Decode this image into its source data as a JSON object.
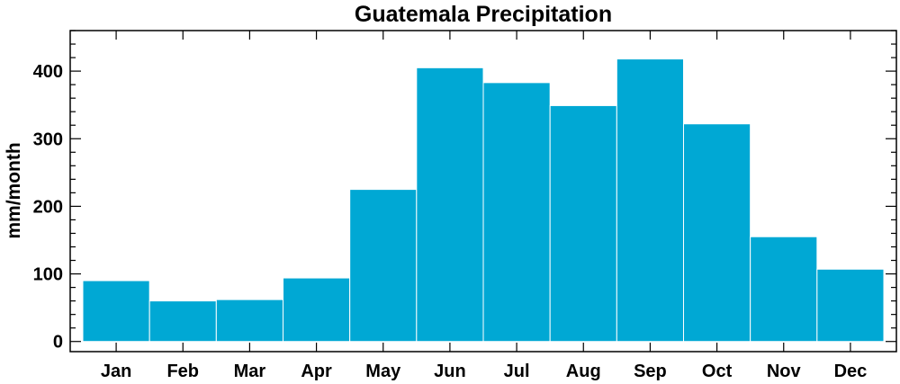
{
  "chart_data": {
    "type": "bar",
    "title": "Guatemala Precipitation",
    "xlabel": "",
    "ylabel": "mm/month",
    "categories": [
      "Jan",
      "Feb",
      "Mar",
      "Apr",
      "May",
      "Jun",
      "Jul",
      "Aug",
      "Sep",
      "Oct",
      "Nov",
      "Dec"
    ],
    "values": [
      90,
      60,
      62,
      94,
      225,
      405,
      383,
      349,
      418,
      322,
      155,
      107
    ],
    "ylim": [
      -15,
      460
    ],
    "yticks": [
      0,
      100,
      200,
      300,
      400
    ],
    "ytick_labels": [
      "0",
      "100",
      "200",
      "300",
      "400"
    ],
    "bar_color": "#00A8D4",
    "grid": false,
    "legend": "none"
  }
}
